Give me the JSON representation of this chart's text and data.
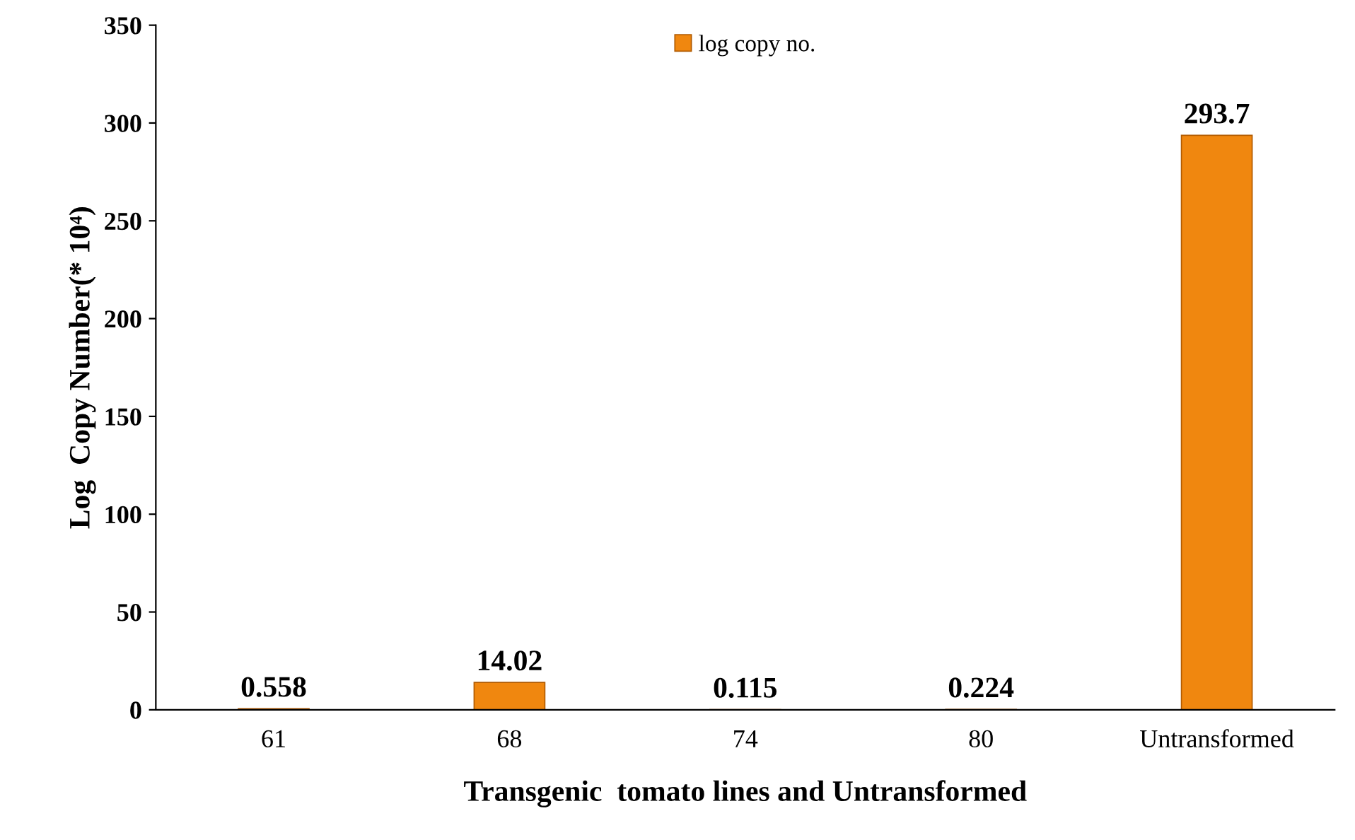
{
  "chart_data": {
    "type": "bar",
    "xlabel": "Transgenic  tomato lines and Untransformed",
    "ylabel": "Log  Copy Number(* 10⁴)",
    "categories": [
      "61",
      "68",
      "74",
      "80",
      "Untransformed"
    ],
    "series": [
      {
        "name": "log copy no.",
        "color": "#f0870f",
        "values": [
          0.558,
          14.02,
          0.115,
          0.224,
          293.7
        ]
      }
    ],
    "ylim": [
      0,
      350
    ],
    "yticks": [
      0,
      50,
      100,
      150,
      200,
      250,
      300,
      350
    ],
    "data_labels": true,
    "legend": "top",
    "grid": false
  }
}
